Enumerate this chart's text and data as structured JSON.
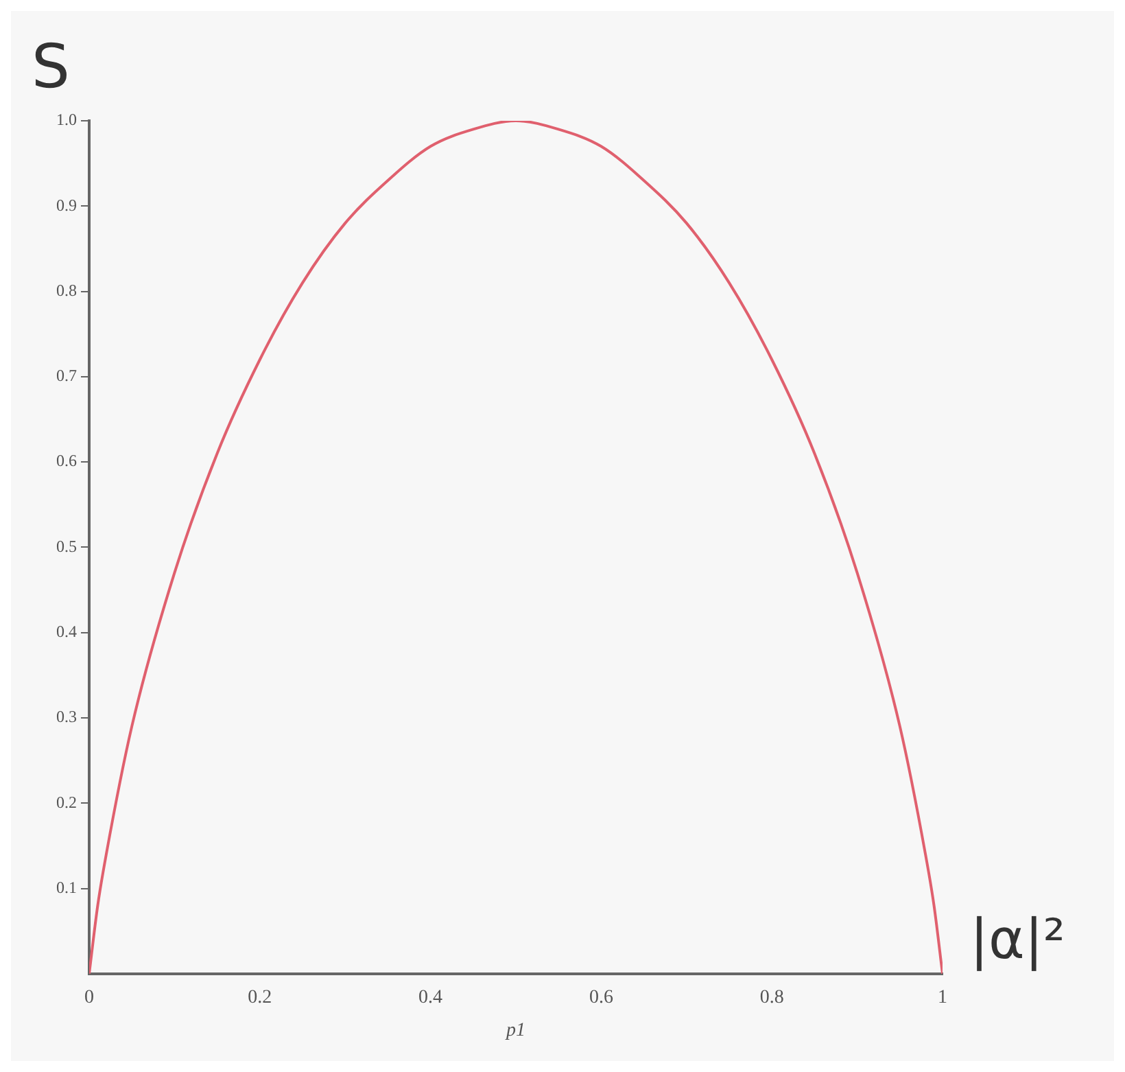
{
  "chart_data": {
    "type": "line",
    "xlabel": "p1",
    "ylabel": "S",
    "annotations": [
      "|α|²"
    ],
    "x": [
      0,
      0.01,
      0.02,
      0.05,
      0.1,
      0.15,
      0.2,
      0.25,
      0.3,
      0.35,
      0.4,
      0.45,
      0.5,
      0.55,
      0.6,
      0.65,
      0.7,
      0.75,
      0.8,
      0.85,
      0.9,
      0.95,
      0.98,
      0.99,
      1
    ],
    "series": [
      {
        "color": "#e0606e",
        "values": [
          0,
          0.08,
          0.14,
          0.29,
          0.47,
          0.61,
          0.72,
          0.81,
          0.88,
          0.93,
          0.97,
          0.99,
          1,
          0.99,
          0.97,
          0.93,
          0.88,
          0.81,
          0.72,
          0.61,
          0.47,
          0.29,
          0.14,
          0.08,
          0
        ]
      }
    ],
    "xlim": [
      0,
      1
    ],
    "xticks": [
      0,
      0.2,
      0.4,
      0.6,
      0.8,
      1
    ],
    "ylim": [
      0,
      1
    ],
    "yticks": [
      0.1,
      0.2,
      0.3,
      0.4,
      0.5,
      0.6,
      0.7,
      0.8,
      0.9,
      {
        "value": 1,
        "label": "1.0"
      }
    ],
    "grid": false,
    "legend": false,
    "marker": "none",
    "line_style": "solid"
  }
}
